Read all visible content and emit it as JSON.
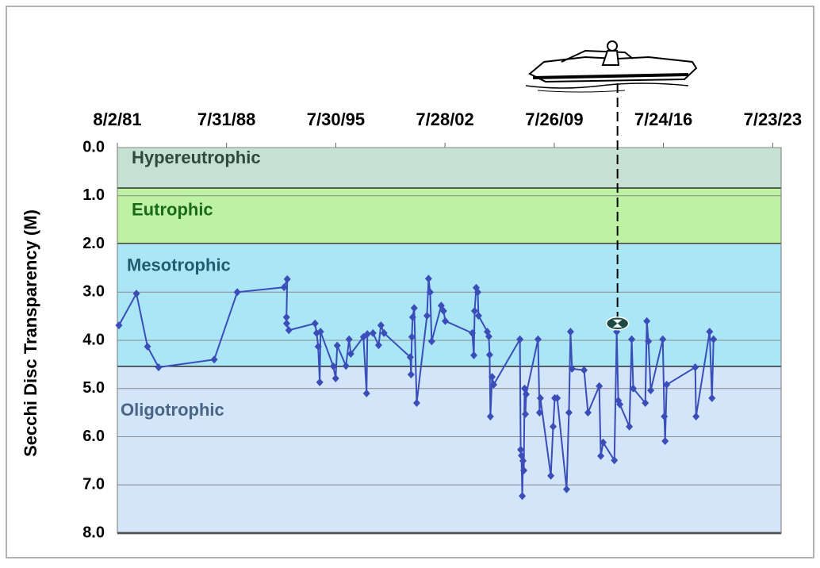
{
  "chart_data": {
    "type": "line",
    "y_label": "Secchi Disc Transparency (M)",
    "xlim": [
      1981.59,
      2024.1
    ],
    "xticks": [
      {
        "value": 1981.59,
        "label": "8/2/81"
      },
      {
        "value": 1988.58,
        "label": "7/31/88"
      },
      {
        "value": 1995.58,
        "label": "7/30/95"
      },
      {
        "value": 2002.57,
        "label": "7/28/02"
      },
      {
        "value": 2009.57,
        "label": "7/26/09"
      },
      {
        "value": 2016.56,
        "label": "7/24/16"
      },
      {
        "value": 2023.56,
        "label": "7/23/23"
      }
    ],
    "ylim": [
      0,
      8
    ],
    "y_inverted": true,
    "yticks": [
      {
        "value": 0,
        "label": "0.0"
      },
      {
        "value": 1,
        "label": "1.0"
      },
      {
        "value": 2,
        "label": "2.0"
      },
      {
        "value": 3,
        "label": "3.0"
      },
      {
        "value": 4,
        "label": "4.0"
      },
      {
        "value": 5,
        "label": "5.0"
      },
      {
        "value": 6,
        "label": "6.0"
      },
      {
        "value": 7,
        "label": "7.0"
      },
      {
        "value": 8,
        "label": "8.0"
      }
    ],
    "grid": true,
    "bands": [
      {
        "label": "Hypereutrophic",
        "from": 0,
        "to": 0.85,
        "color": "#c6e0d4",
        "label_color": "#2e4a3c"
      },
      {
        "label": "Eutrophic",
        "from": 0.85,
        "to": 2.0,
        "color": "#bdf2a4",
        "label_color": "#1b6a1b"
      },
      {
        "label": "Mesotrophic",
        "from": 2.0,
        "to": 4.55,
        "color": "#aae6f6",
        "label_color": "#1f5d6e"
      },
      {
        "label": "Oligotrophic",
        "from": 4.55,
        "to": 8.0,
        "color": "#d2e5f9",
        "label_color": "#4b6585"
      }
    ],
    "highlight": {
      "x": 2013.62,
      "y": 3.65
    },
    "series": [
      {
        "color": "#3a4db8",
        "x": [
          1981.69,
          1982.81,
          1983.52,
          1984.23,
          1987.79,
          1989.27,
          1992.27,
          1992.47,
          1992.42,
          1992.43,
          1992.57,
          1994.25,
          1994.35,
          1994.45,
          1994.55,
          1994.6,
          1995.42,
          1995.57,
          1995.67,
          1996.23,
          1996.43,
          1996.54,
          1997.35,
          1997.55,
          1997.6,
          1997.96,
          1998.32,
          1998.47,
          1998.67,
          2000.35,
          2000.4,
          2000.45,
          2000.5,
          2000.6,
          2000.76,
          2001.42,
          2001.52,
          2001.62,
          2001.72,
          2002.33,
          2002.48,
          2002.59,
          2004.32,
          2004.42,
          2004.47,
          2004.57,
          2004.67,
          2004.72,
          2005.28,
          2005.38,
          2005.43,
          2005.48,
          2005.59,
          2005.69,
          2007.37,
          2007.42,
          2007.47,
          2007.52,
          2007.57,
          2007.62,
          2007.67,
          2007.72,
          2007.77,
          2008.53,
          2008.63,
          2008.68,
          2009.35,
          2009.5,
          2009.6,
          2009.76,
          2010.36,
          2010.51,
          2010.61,
          2010.71,
          2011.48,
          2011.73,
          2012.45,
          2012.55,
          2012.7,
          2013.42,
          2013.57,
          2013.67,
          2013.77,
          2014.38,
          2014.53,
          2014.63,
          2015.4,
          2015.5,
          2015.6,
          2015.75,
          2016.52,
          2016.62,
          2016.67,
          2016.77,
          2018.6,
          2018.65,
          2019.52,
          2019.67,
          2019.77
        ],
        "values": [
          3.69,
          3.03,
          4.13,
          4.56,
          4.4,
          3.0,
          2.9,
          2.73,
          3.52,
          3.65,
          3.79,
          3.65,
          3.85,
          4.13,
          4.87,
          3.82,
          4.54,
          4.79,
          4.11,
          4.53,
          3.98,
          4.28,
          3.93,
          5.1,
          3.87,
          3.85,
          4.1,
          3.69,
          3.85,
          4.35,
          4.71,
          3.93,
          3.52,
          3.33,
          5.3,
          3.49,
          2.72,
          3.0,
          4.02,
          3.28,
          3.39,
          3.6,
          3.85,
          4.31,
          3.39,
          2.91,
          3.0,
          3.49,
          3.82,
          3.92,
          4.3,
          5.58,
          4.76,
          4.92,
          3.98,
          6.27,
          6.39,
          7.23,
          6.5,
          6.7,
          5.0,
          5.53,
          5.12,
          3.98,
          5.5,
          5.2,
          6.81,
          5.79,
          5.2,
          5.2,
          7.09,
          5.5,
          3.82,
          4.59,
          4.62,
          5.5,
          4.95,
          6.4,
          6.12,
          6.49,
          3.82,
          5.25,
          5.33,
          5.79,
          3.98,
          5.0,
          5.3,
          3.6,
          4.02,
          5.04,
          3.98,
          5.58,
          6.09,
          4.92,
          4.56,
          5.58,
          3.82,
          5.2,
          3.98
        ]
      }
    ]
  }
}
